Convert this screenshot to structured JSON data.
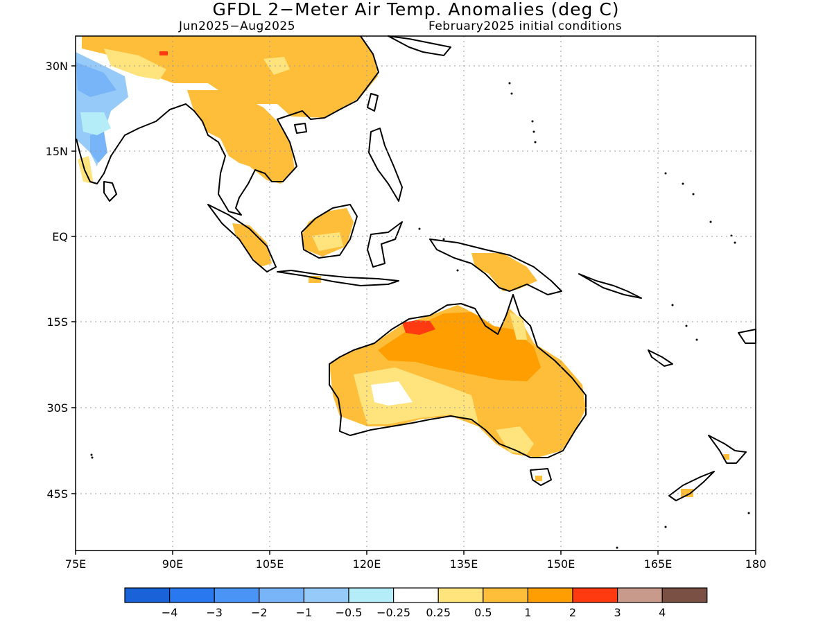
{
  "header": {
    "title": "GFDL 2−Meter Air Temp. Anomalies (deg C)",
    "period": "Jun2025−Aug2025",
    "init": "February2025 initial conditions"
  },
  "map": {
    "lat_ticks": [
      {
        "value": 30,
        "label": "30N"
      },
      {
        "value": 15,
        "label": "15N"
      },
      {
        "value": 0,
        "label": "EQ"
      },
      {
        "value": -15,
        "label": "15S"
      },
      {
        "value": -30,
        "label": "30S"
      },
      {
        "value": -45,
        "label": "45S"
      }
    ],
    "lon_ticks": [
      {
        "value": 75,
        "label": "75E"
      },
      {
        "value": 90,
        "label": "90E"
      },
      {
        "value": 105,
        "label": "105E"
      },
      {
        "value": 120,
        "label": "120E"
      },
      {
        "value": 135,
        "label": "135E"
      },
      {
        "value": 150,
        "label": "150E"
      },
      {
        "value": 165,
        "label": "165E"
      },
      {
        "value": 180,
        "label": "180"
      }
    ]
  },
  "colorbar": {
    "colors": [
      "#1a62d8",
      "#2a78f0",
      "#4a94f5",
      "#78b4f8",
      "#96caf8",
      "#b4ecf8",
      "#ffffff",
      "#ffe47e",
      "#ffbe3a",
      "#ff9e00",
      "#ff3a10",
      "#c89a8c",
      "#7a5044"
    ],
    "labels": [
      "−4",
      "−3",
      "−2",
      "−1",
      "−0.5",
      "−0.25",
      "0.25",
      "0.5",
      "1",
      "2",
      "3",
      "4"
    ]
  }
}
